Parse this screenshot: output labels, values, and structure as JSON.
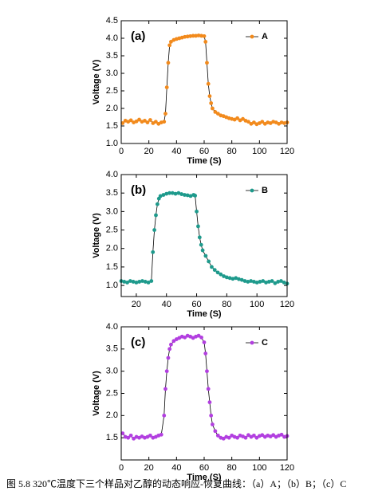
{
  "chart_data": [
    {
      "type": "line",
      "panel_label": "(a)",
      "xlabel": "Time (S)",
      "ylabel": "Voltage (V)",
      "line_color": "#000000",
      "legend": "upper right",
      "x": [
        1,
        3,
        5,
        7,
        9,
        11,
        13,
        15,
        17,
        19,
        21,
        23,
        25,
        27,
        29,
        31,
        32,
        33,
        34,
        35,
        36,
        38,
        40,
        42,
        44,
        46,
        48,
        50,
        52,
        54,
        56,
        58,
        60,
        61,
        62,
        63,
        64,
        65,
        66,
        68,
        70,
        72,
        74,
        76,
        78,
        80,
        82,
        84,
        86,
        88,
        90,
        92,
        94,
        96,
        98,
        100,
        102,
        104,
        106,
        108,
        110,
        112,
        114,
        116,
        118,
        120
      ],
      "series": [
        {
          "name": "A",
          "color": "#f28a1c",
          "values": [
            1.58,
            1.65,
            1.62,
            1.66,
            1.6,
            1.63,
            1.68,
            1.62,
            1.65,
            1.6,
            1.67,
            1.58,
            1.62,
            1.56,
            1.6,
            1.62,
            1.85,
            2.6,
            3.3,
            3.8,
            3.9,
            3.95,
            3.98,
            4.0,
            4.02,
            4.04,
            4.05,
            4.06,
            4.07,
            4.07,
            4.08,
            4.07,
            4.06,
            3.9,
            3.3,
            2.7,
            2.35,
            2.15,
            2.0,
            1.9,
            1.85,
            1.8,
            1.78,
            1.75,
            1.72,
            1.7,
            1.68,
            1.72,
            1.66,
            1.7,
            1.65,
            1.62,
            1.56,
            1.6,
            1.55,
            1.58,
            1.62,
            1.56,
            1.6,
            1.58,
            1.62,
            1.6,
            1.56,
            1.6,
            1.58,
            1.6
          ]
        }
      ],
      "xlim": [
        0,
        120
      ],
      "xticks": [
        0,
        20,
        40,
        60,
        80,
        100,
        120
      ],
      "ylim": [
        1.0,
        4.5
      ],
      "yticks": [
        {
          "value": 1.0,
          "label": "1.0"
        },
        {
          "value": 1.5,
          "label": "1.5"
        },
        {
          "value": 2.0,
          "label": "2.0"
        },
        {
          "value": 2.5,
          "label": "2.5"
        },
        {
          "value": 3.0,
          "label": "3.0"
        },
        {
          "value": 3.5,
          "label": "3.5"
        },
        {
          "value": 4.0,
          "label": "4.0"
        },
        {
          "value": 4.5,
          "label": "4.5"
        }
      ]
    },
    {
      "type": "line",
      "panel_label": "(b)",
      "xlabel": "Time (S)",
      "ylabel": "Voltage (V)",
      "line_color": "#000000",
      "legend": "upper right",
      "x": [
        10,
        12,
        14,
        16,
        18,
        20,
        22,
        24,
        26,
        28,
        30,
        31,
        32,
        33,
        34,
        35,
        36,
        38,
        40,
        42,
        44,
        46,
        48,
        50,
        52,
        54,
        56,
        58,
        59,
        60,
        61,
        62,
        63,
        64,
        66,
        68,
        70,
        72,
        74,
        76,
        78,
        80,
        82,
        84,
        86,
        88,
        90,
        92,
        94,
        96,
        98,
        100,
        102,
        104,
        106,
        108,
        110,
        112,
        114,
        116,
        118,
        120
      ],
      "series": [
        {
          "name": "B",
          "color": "#1e9a8c",
          "values": [
            1.12,
            1.1,
            1.08,
            1.12,
            1.1,
            1.08,
            1.1,
            1.12,
            1.1,
            1.08,
            1.12,
            1.9,
            2.5,
            2.9,
            3.2,
            3.35,
            3.42,
            3.45,
            3.48,
            3.5,
            3.5,
            3.48,
            3.5,
            3.47,
            3.45,
            3.44,
            3.42,
            3.45,
            3.43,
            3.0,
            2.6,
            2.3,
            2.1,
            1.95,
            1.8,
            1.65,
            1.5,
            1.42,
            1.35,
            1.3,
            1.25,
            1.22,
            1.2,
            1.18,
            1.2,
            1.17,
            1.15,
            1.12,
            1.1,
            1.12,
            1.1,
            1.08,
            1.1,
            1.12,
            1.08,
            1.1,
            1.12,
            1.06,
            1.1,
            1.12,
            1.08,
            1.05
          ]
        }
      ],
      "xlim": [
        10,
        120
      ],
      "xticks": [
        20,
        40,
        60,
        80,
        100,
        120
      ],
      "ylim": [
        0.7,
        4.0
      ],
      "yticks": [
        {
          "value": 1.0,
          "label": "1.0"
        },
        {
          "value": 1.5,
          "label": "1.5"
        },
        {
          "value": 2.0,
          "label": "2.0"
        },
        {
          "value": 2.5,
          "label": "2.5"
        },
        {
          "value": 3.0,
          "label": "3.0"
        },
        {
          "value": 3.5,
          "label": "3.5"
        },
        {
          "value": 4.0,
          "label": "4.0"
        }
      ]
    },
    {
      "type": "line",
      "panel_label": "(c)",
      "xlabel": "Time (S)",
      "ylabel": "Voltage (V)",
      "line_color": "#000000",
      "legend": "upper right",
      "x": [
        1,
        3,
        5,
        7,
        9,
        11,
        13,
        15,
        17,
        19,
        21,
        23,
        25,
        27,
        29,
        31,
        32,
        33,
        34,
        35,
        36,
        38,
        40,
        42,
        44,
        46,
        48,
        50,
        52,
        54,
        56,
        58,
        60,
        61,
        62,
        63,
        64,
        65,
        66,
        68,
        70,
        72,
        74,
        76,
        78,
        80,
        82,
        84,
        86,
        88,
        90,
        92,
        94,
        96,
        98,
        100,
        102,
        104,
        106,
        108,
        110,
        112,
        114,
        116,
        118,
        120
      ],
      "series": [
        {
          "name": "C",
          "color": "#b23fe0",
          "values": [
            1.6,
            1.52,
            1.5,
            1.55,
            1.48,
            1.52,
            1.5,
            1.53,
            1.5,
            1.52,
            1.55,
            1.5,
            1.52,
            1.55,
            1.57,
            2.0,
            2.6,
            3.0,
            3.3,
            3.5,
            3.6,
            3.68,
            3.72,
            3.75,
            3.78,
            3.76,
            3.8,
            3.78,
            3.75,
            3.78,
            3.8,
            3.76,
            3.65,
            3.4,
            3.0,
            2.6,
            2.3,
            2.0,
            1.8,
            1.65,
            1.55,
            1.5,
            1.48,
            1.52,
            1.5,
            1.55,
            1.52,
            1.5,
            1.55,
            1.53,
            1.5,
            1.56,
            1.52,
            1.55,
            1.5,
            1.54,
            1.56,
            1.52,
            1.55,
            1.53,
            1.56,
            1.52,
            1.55,
            1.57,
            1.52,
            1.54
          ]
        }
      ],
      "xlim": [
        0,
        120
      ],
      "xticks": [
        0,
        20,
        40,
        60,
        80,
        100,
        120
      ],
      "ylim": [
        1.0,
        4.0
      ],
      "yticks": [
        {
          "value": 1.5,
          "label": "1.5"
        },
        {
          "value": 2.0,
          "label": "2.0"
        },
        {
          "value": 2.5,
          "label": "2.5"
        },
        {
          "value": 3.0,
          "label": "3.0"
        },
        {
          "value": 3.5,
          "label": "3.5"
        },
        {
          "value": 4.0,
          "label": "4.0"
        }
      ]
    }
  ],
  "caption": "图 5.8 320℃温度下三个样品对乙醇的动态响应-恢复曲线：（a）A；（b）B；（c）C"
}
